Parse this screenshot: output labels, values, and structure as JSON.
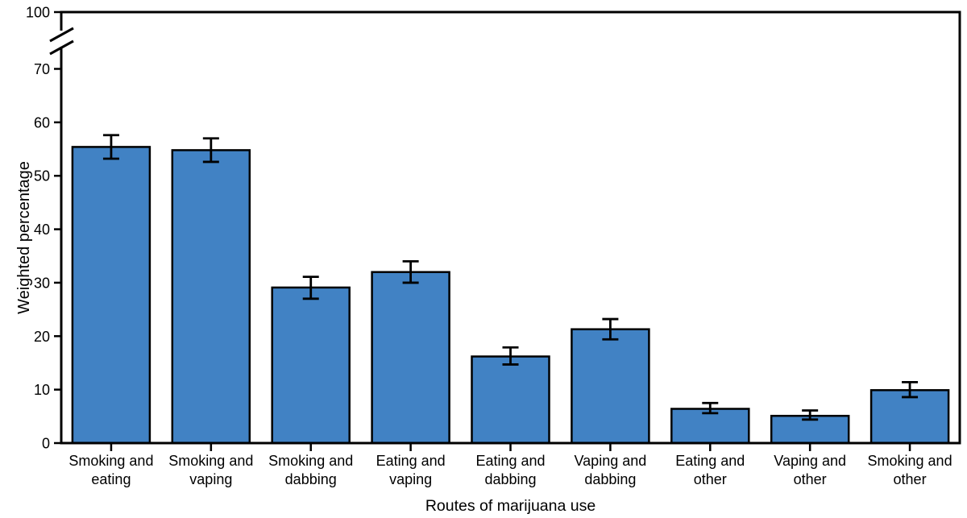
{
  "figure": {
    "background": "#FFFFFF"
  },
  "chart_data": {
    "type": "bar",
    "title": "",
    "xlabel": "Routes of marijuana use",
    "ylabel": "Weighted percentage",
    "categories": [
      "Smoking and\neating",
      "Smoking and\nvaping",
      "Smoking and\ndabbing",
      "Eating and\nvaping",
      "Eating and\ndabbing",
      "Vaping and\ndabbing",
      "Eating and\nother",
      "Vaping and\nother",
      "Smoking and\nother"
    ],
    "values": [
      55.4,
      54.8,
      29.1,
      32.0,
      16.2,
      21.3,
      6.4,
      5.1,
      9.9
    ],
    "error_low": [
      53.2,
      52.6,
      27.0,
      30.0,
      14.7,
      19.4,
      5.6,
      4.4,
      8.6
    ],
    "error_high": [
      57.6,
      57.0,
      31.1,
      34.0,
      17.9,
      23.2,
      7.5,
      6.1,
      11.4
    ],
    "yticks": [
      0,
      10,
      20,
      30,
      40,
      50,
      60,
      70,
      100
    ],
    "ytick_labels": [
      "0",
      "10",
      "20",
      "30",
      "40",
      "50",
      "60",
      "70",
      "100"
    ],
    "ylim": [
      0,
      100
    ],
    "axis_break": {
      "between": [
        70,
        100
      ]
    },
    "grid": false,
    "legend": null,
    "error_bars": true,
    "colors": {
      "bar_fill": "#4182C4",
      "bar_edge": "#000000",
      "error_bar": "#000000",
      "axis": "#000000",
      "text": "#000000"
    }
  }
}
